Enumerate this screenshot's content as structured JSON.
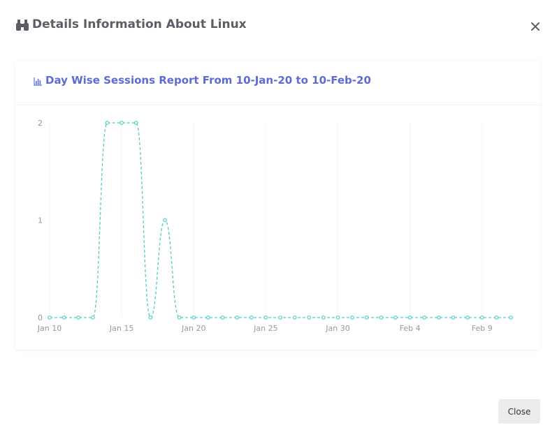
{
  "modal": {
    "title": "Details Information About Linux",
    "title_icon": "binoculars-icon",
    "close_icon": "close-icon",
    "close_button_label": "Close"
  },
  "card": {
    "title": "Day Wise Sessions Report From 10-Jan-20 to 10-Feb-20",
    "title_icon": "bar-chart-icon"
  },
  "colors": {
    "series": "#4ecdc4",
    "title_accent": "#5c6bd6",
    "grid": "#f3f3f3",
    "tick_text": "#999999"
  },
  "chart_data": {
    "type": "line",
    "title": "Day Wise Sessions Report From 10-Jan-20 to 10-Feb-20",
    "xlabel": "",
    "ylabel": "",
    "x": [
      "2020-01-10",
      "2020-01-11",
      "2020-01-12",
      "2020-01-13",
      "2020-01-14",
      "2020-01-15",
      "2020-01-16",
      "2020-01-17",
      "2020-01-18",
      "2020-01-19",
      "2020-01-20",
      "2020-01-21",
      "2020-01-22",
      "2020-01-23",
      "2020-01-24",
      "2020-01-25",
      "2020-01-26",
      "2020-01-27",
      "2020-01-28",
      "2020-01-29",
      "2020-01-30",
      "2020-01-31",
      "2020-02-01",
      "2020-02-02",
      "2020-02-03",
      "2020-02-04",
      "2020-02-05",
      "2020-02-06",
      "2020-02-07",
      "2020-02-08",
      "2020-02-09",
      "2020-02-10",
      "2020-02-11"
    ],
    "values": [
      0,
      0,
      0,
      0,
      2,
      2,
      2,
      0,
      1,
      0,
      0,
      0,
      0,
      0,
      0,
      0,
      0,
      0,
      0,
      0,
      0,
      0,
      0,
      0,
      0,
      0,
      0,
      0,
      0,
      0,
      0,
      0,
      0
    ],
    "x_tick_labels": [
      "Jan 10",
      "Jan 15",
      "Jan 20",
      "Jan 25",
      "Jan 30",
      "Feb 4",
      "Feb 9"
    ],
    "x_tick_dates": [
      "2020-01-10",
      "2020-01-15",
      "2020-01-20",
      "2020-01-25",
      "2020-01-30",
      "2020-02-04",
      "2020-02-09"
    ],
    "y_ticks": [
      0,
      1,
      2
    ],
    "ylim": [
      0,
      2
    ],
    "line_style": "dashed",
    "grid": true,
    "legend": false
  }
}
